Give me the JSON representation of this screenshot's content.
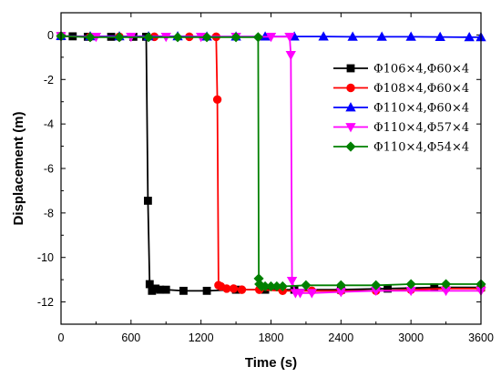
{
  "chart_data": {
    "type": "line",
    "title": "",
    "xlabel": "Time (s)",
    "ylabel": "Displacement (m)",
    "xlim": [
      0,
      3600
    ],
    "ylim": [
      -13,
      1
    ],
    "xticks": [
      0,
      600,
      1200,
      1800,
      2400,
      3000,
      3600
    ],
    "yticks": [
      0,
      -2,
      -4,
      -6,
      -8,
      -10,
      -12
    ],
    "grid": false,
    "legend_position": "top-right",
    "series": [
      {
        "name": "Φ106×4,Φ60×4",
        "color": "#000000",
        "marker": "square",
        "x": [
          0,
          100,
          230,
          430,
          620,
          730,
          745,
          760,
          780,
          810,
          850,
          900,
          1050,
          1250,
          1500,
          1750,
          2000,
          2400,
          2800,
          3200,
          3600
        ],
        "y": [
          -0.05,
          -0.06,
          -0.08,
          -0.08,
          -0.08,
          -0.08,
          -7.45,
          -11.2,
          -11.5,
          -11.4,
          -11.45,
          -11.45,
          -11.5,
          -11.5,
          -11.45,
          -11.45,
          -11.45,
          -11.45,
          -11.4,
          -11.35,
          -11.35
        ]
      },
      {
        "name": "Φ108×4,Φ60×4",
        "color": "#ff0000",
        "marker": "circle",
        "x": [
          0,
          250,
          500,
          800,
          1100,
          1330,
          1340,
          1350,
          1370,
          1420,
          1480,
          1550,
          1700,
          1900,
          2150,
          2400,
          2700,
          3000,
          3300,
          3600
        ],
        "y": [
          -0.05,
          -0.08,
          -0.08,
          -0.08,
          -0.08,
          -0.08,
          -2.9,
          -11.25,
          -11.3,
          -11.4,
          -11.4,
          -11.45,
          -11.45,
          -11.5,
          -11.5,
          -11.5,
          -11.5,
          -11.45,
          -11.4,
          -11.4
        ]
      },
      {
        "name": "Φ110×4,Φ60×4",
        "color": "#0000ff",
        "marker": "triangle-up",
        "x": [
          0,
          250,
          500,
          750,
          1000,
          1250,
          1500,
          1750,
          2000,
          2250,
          2500,
          2750,
          3000,
          3250,
          3500,
          3600
        ],
        "y": [
          -0.05,
          -0.06,
          -0.06,
          -0.06,
          -0.06,
          -0.07,
          -0.07,
          -0.07,
          -0.07,
          -0.07,
          -0.08,
          -0.08,
          -0.08,
          -0.09,
          -0.1,
          -0.1
        ]
      },
      {
        "name": "Φ110×4,Φ57×4",
        "color": "#ff00ff",
        "marker": "triangle-down",
        "x": [
          0,
          300,
          600,
          900,
          1200,
          1500,
          1800,
          1960,
          1970,
          1980,
          2010,
          2050,
          2150,
          2400,
          2700,
          3000,
          3300,
          3600
        ],
        "y": [
          -0.05,
          -0.08,
          -0.08,
          -0.08,
          -0.08,
          -0.08,
          -0.08,
          -0.08,
          -0.9,
          -11.05,
          -11.6,
          -11.6,
          -11.6,
          -11.55,
          -11.5,
          -11.5,
          -11.5,
          -11.5
        ]
      },
      {
        "name": "Φ110×4,Φ54×4",
        "color": "#008000",
        "marker": "diamond",
        "x": [
          0,
          250,
          500,
          750,
          1000,
          1250,
          1500,
          1690,
          1695,
          1700,
          1720,
          1750,
          1800,
          1850,
          1900,
          2100,
          2400,
          2700,
          3000,
          3300,
          3600
        ],
        "y": [
          -0.05,
          -0.1,
          -0.1,
          -0.1,
          -0.1,
          -0.1,
          -0.1,
          -0.1,
          -10.95,
          -11.2,
          -11.3,
          -11.3,
          -11.3,
          -11.3,
          -11.3,
          -11.25,
          -11.25,
          -11.25,
          -11.2,
          -11.2,
          -11.2
        ]
      }
    ]
  }
}
